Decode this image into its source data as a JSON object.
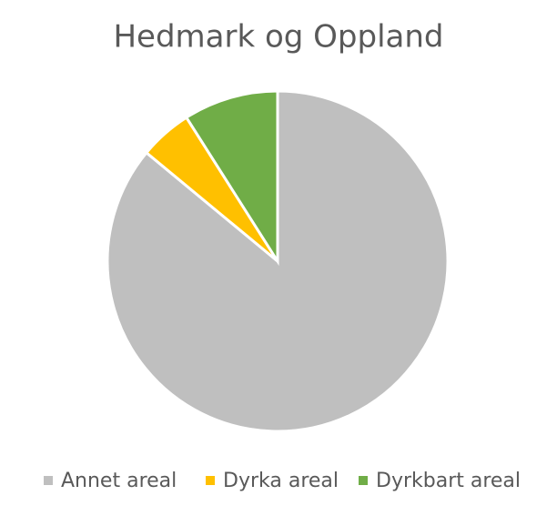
{
  "chart_data": {
    "type": "pie",
    "title": "Hedmark og Oppland",
    "categories": [
      "Annet areal",
      "Dyrka areal",
      "Dyrkbart areal"
    ],
    "values": [
      86,
      5,
      9
    ],
    "colors": [
      "#bfbfbf",
      "#ffc000",
      "#70ad47"
    ]
  }
}
